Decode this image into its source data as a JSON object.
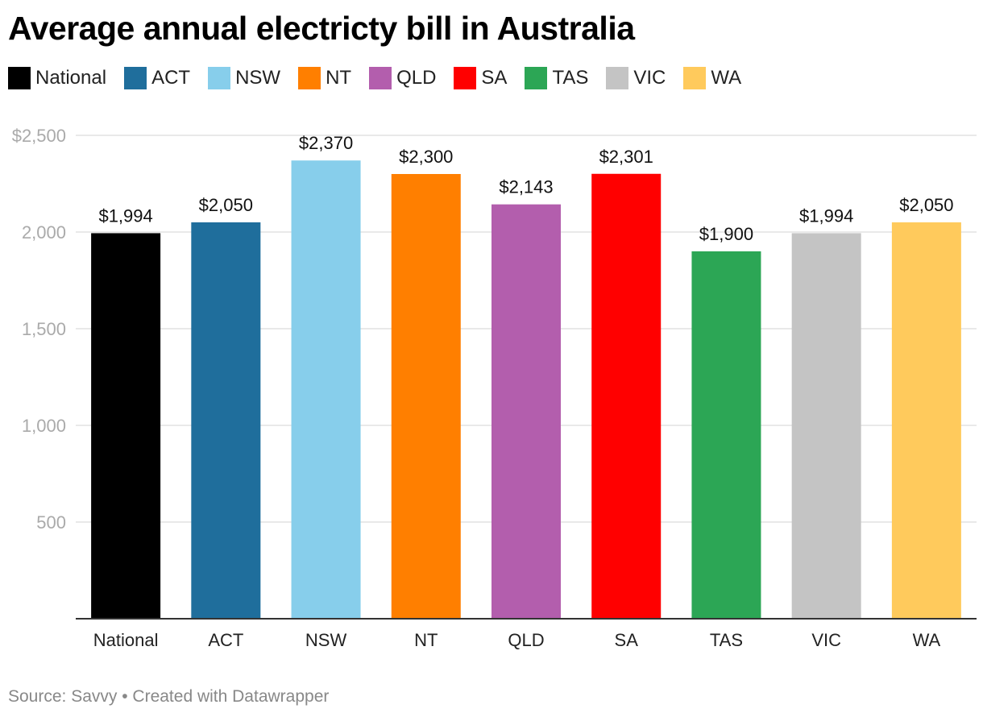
{
  "title": "Average annual electricty bill in Australia",
  "source": "Source: Savvy • Created with Datawrapper",
  "legend": [
    {
      "label": "National",
      "color": "#000000"
    },
    {
      "label": "ACT",
      "color": "#1f6e9c"
    },
    {
      "label": "NSW",
      "color": "#87ceeb"
    },
    {
      "label": "NT",
      "color": "#ff7f00"
    },
    {
      "label": "QLD",
      "color": "#b35ead"
    },
    {
      "label": "SA",
      "color": "#ff0000"
    },
    {
      "label": "TAS",
      "color": "#2ca655"
    },
    {
      "label": "VIC",
      "color": "#c4c4c4"
    },
    {
      "label": "WA",
      "color": "#ffca5c"
    }
  ],
  "chart_data": {
    "type": "bar",
    "categories": [
      "National",
      "ACT",
      "NSW",
      "NT",
      "QLD",
      "SA",
      "TAS",
      "VIC",
      "WA"
    ],
    "values": [
      1994,
      2050,
      2370,
      2300,
      2143,
      2301,
      1900,
      1994,
      2050
    ],
    "value_labels": [
      "$1,994",
      "$2,050",
      "$2,370",
      "$2,300",
      "$2,143",
      "$2,301",
      "$1,900",
      "$1,994",
      "$2,050"
    ],
    "colors": [
      "#000000",
      "#1f6e9c",
      "#87ceeb",
      "#ff7f00",
      "#b35ead",
      "#ff0000",
      "#2ca655",
      "#c4c4c4",
      "#ffca5c"
    ],
    "ylim": [
      0,
      2500
    ],
    "yticks": [
      500,
      1000,
      1500,
      2000,
      2500
    ],
    "ytick_labels": [
      "500",
      "1,000",
      "1,500",
      "2,000",
      "$2,500"
    ],
    "grid": true
  }
}
